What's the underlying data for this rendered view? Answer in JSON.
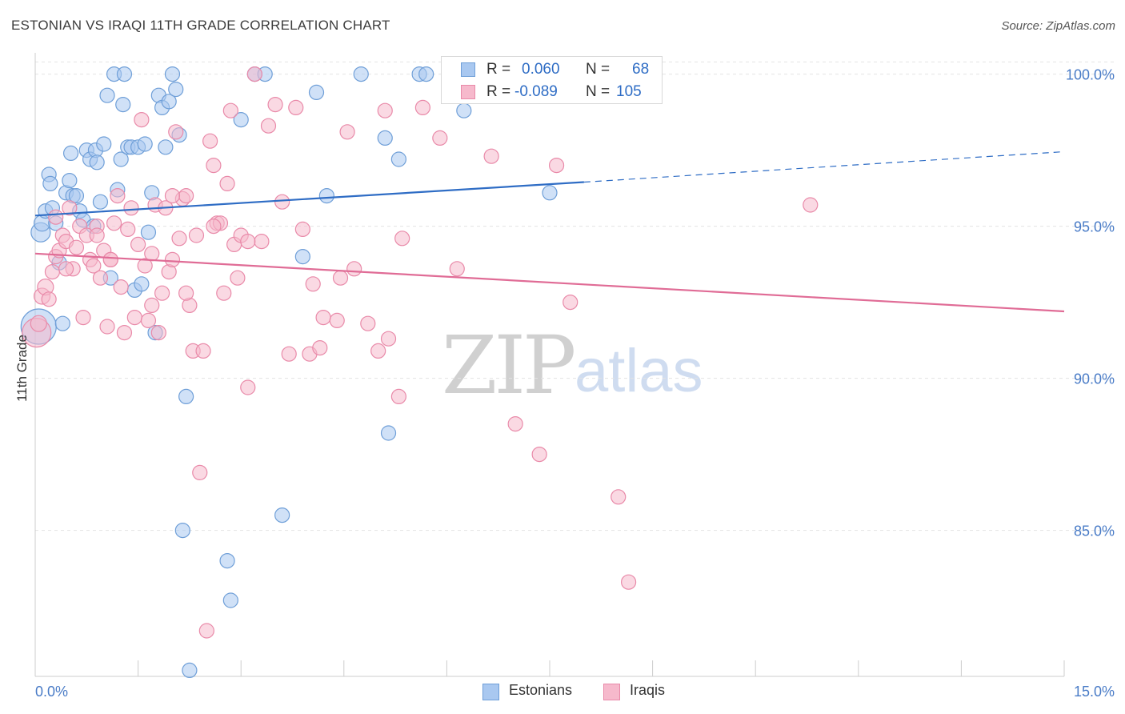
{
  "title": "ESTONIAN VS IRAQI 11TH GRADE CORRELATION CHART",
  "source": "Source: ZipAtlas.com",
  "watermark": {
    "zip": "ZIP",
    "atlas": "atlas"
  },
  "legend": {
    "rows": [
      {
        "r_label": "R =",
        "r_value": "0.060",
        "n_label": "N =",
        "n_value": "68"
      },
      {
        "r_label": "R =",
        "r_value": "-0.089",
        "n_label": "N =",
        "n_value": "105"
      }
    ]
  },
  "bottom_legend": [
    "Estonians",
    "Iraqis"
  ],
  "colors": {
    "blue_fill": "#a9c8f0",
    "blue_stroke": "#6f9fd8",
    "blue_line": "#2f6dc5",
    "pink_fill": "#f6b9cc",
    "pink_stroke": "#e98aa9",
    "pink_line": "#e06c96",
    "axis_label": "#4a7cc7",
    "grid": "#e2e2e2"
  },
  "chart_data": {
    "type": "scatter",
    "title": "ESTONIAN VS IRAQI 11TH GRADE CORRELATION CHART",
    "xlabel": "",
    "ylabel": "11th Grade",
    "xlim": [
      0,
      15
    ],
    "ylim": [
      80.2,
      100.7
    ],
    "x_tick_labels": [
      "0.0%",
      "15.0%"
    ],
    "y_ticks": [
      85,
      90,
      95,
      100
    ],
    "y_tick_labels": [
      "85.0%",
      "90.0%",
      "95.0%",
      "100.0%"
    ],
    "grid": true,
    "legend_position": "top-center",
    "series": [
      {
        "name": "Estonians",
        "r": 0.06,
        "n": 68,
        "trend": {
          "x": [
            0,
            8.0
          ],
          "y": [
            95.35,
            96.45
          ],
          "dashed_extension": {
            "x": [
              8.0,
              15.0
            ],
            "y": [
              96.45,
              97.45
            ]
          }
        },
        "points": [
          [
            0.05,
            91.7,
            22
          ],
          [
            0.08,
            94.8,
            12
          ],
          [
            0.1,
            95.1,
            10
          ],
          [
            0.15,
            95.5,
            9
          ],
          [
            0.2,
            96.7,
            9
          ],
          [
            0.22,
            96.4,
            9
          ],
          [
            0.25,
            95.6,
            9
          ],
          [
            0.3,
            95.1,
            9
          ],
          [
            0.35,
            93.8,
            9
          ],
          [
            0.4,
            91.8,
            9
          ],
          [
            0.45,
            96.1,
            9
          ],
          [
            0.5,
            96.5,
            9
          ],
          [
            0.52,
            97.4,
            9
          ],
          [
            0.55,
            96.0,
            9
          ],
          [
            0.6,
            96.0,
            9
          ],
          [
            0.65,
            95.5,
            9
          ],
          [
            0.7,
            95.2,
            9
          ],
          [
            0.75,
            97.5,
            9
          ],
          [
            0.8,
            97.2,
            9
          ],
          [
            0.85,
            95.0,
            9
          ],
          [
            0.88,
            97.5,
            9
          ],
          [
            0.9,
            97.1,
            9
          ],
          [
            0.95,
            95.8,
            9
          ],
          [
            1.0,
            97.7,
            9
          ],
          [
            1.05,
            99.3,
            9
          ],
          [
            1.1,
            93.3,
            9
          ],
          [
            1.15,
            100.0,
            9
          ],
          [
            1.2,
            96.2,
            9
          ],
          [
            1.25,
            97.2,
            9
          ],
          [
            1.28,
            99.0,
            9
          ],
          [
            1.3,
            100.0,
            9
          ],
          [
            1.35,
            97.6,
            9
          ],
          [
            1.4,
            97.6,
            9
          ],
          [
            1.45,
            92.9,
            9
          ],
          [
            1.5,
            97.6,
            9
          ],
          [
            1.55,
            93.1,
            9
          ],
          [
            1.6,
            97.7,
            9
          ],
          [
            1.65,
            94.8,
            9
          ],
          [
            1.7,
            96.1,
            9
          ],
          [
            1.75,
            91.5,
            9
          ],
          [
            1.8,
            99.3,
            9
          ],
          [
            1.85,
            98.9,
            9
          ],
          [
            1.9,
            97.6,
            9
          ],
          [
            1.95,
            99.1,
            9
          ],
          [
            2.0,
            100.0,
            9
          ],
          [
            2.05,
            99.5,
            9
          ],
          [
            2.1,
            98.0,
            9
          ],
          [
            2.15,
            85.0,
            9
          ],
          [
            2.2,
            89.4,
            9
          ],
          [
            2.25,
            80.4,
            9
          ],
          [
            2.8,
            84.0,
            9
          ],
          [
            2.85,
            82.7,
            9
          ],
          [
            3.0,
            98.5,
            9
          ],
          [
            3.2,
            100.0,
            9
          ],
          [
            3.35,
            100.0,
            9
          ],
          [
            3.6,
            85.5,
            9
          ],
          [
            3.9,
            94.0,
            9
          ],
          [
            4.1,
            99.4,
            9
          ],
          [
            4.25,
            96.0,
            9
          ],
          [
            4.75,
            100.0,
            9
          ],
          [
            5.1,
            97.9,
            9
          ],
          [
            5.15,
            88.2,
            9
          ],
          [
            5.3,
            97.2,
            9
          ],
          [
            5.6,
            100.0,
            9
          ],
          [
            6.25,
            98.8,
            9
          ],
          [
            7.5,
            96.1,
            9
          ],
          [
            8.1,
            100.0,
            9
          ],
          [
            5.7,
            100.0,
            9
          ]
        ]
      },
      {
        "name": "Iraqis",
        "r": -0.089,
        "n": 105,
        "trend": {
          "x": [
            0,
            15.0
          ],
          "y": [
            94.1,
            92.2
          ]
        },
        "points": [
          [
            0.02,
            91.5,
            18
          ],
          [
            0.05,
            91.8,
            10
          ],
          [
            0.1,
            92.7,
            10
          ],
          [
            0.15,
            93.0,
            10
          ],
          [
            0.2,
            92.6,
            9
          ],
          [
            0.25,
            93.5,
            9
          ],
          [
            0.3,
            94.0,
            9
          ],
          [
            0.35,
            94.2,
            9
          ],
          [
            0.4,
            94.7,
            9
          ],
          [
            0.45,
            94.5,
            9
          ],
          [
            0.5,
            95.6,
            9
          ],
          [
            0.55,
            93.6,
            9
          ],
          [
            0.6,
            94.3,
            9
          ],
          [
            0.65,
            95.0,
            9
          ],
          [
            0.7,
            92.0,
            9
          ],
          [
            0.75,
            94.7,
            9
          ],
          [
            0.8,
            93.9,
            9
          ],
          [
            0.85,
            93.7,
            9
          ],
          [
            0.9,
            95.0,
            9
          ],
          [
            0.95,
            93.3,
            9
          ],
          [
            1.0,
            94.2,
            9
          ],
          [
            1.05,
            91.7,
            9
          ],
          [
            1.1,
            93.9,
            9
          ],
          [
            1.15,
            95.1,
            9
          ],
          [
            1.2,
            96.0,
            9
          ],
          [
            1.25,
            93.0,
            9
          ],
          [
            1.3,
            91.5,
            9
          ],
          [
            1.35,
            94.9,
            9
          ],
          [
            1.4,
            95.6,
            9
          ],
          [
            1.45,
            92.0,
            9
          ],
          [
            1.5,
            94.4,
            9
          ],
          [
            1.55,
            98.5,
            9
          ],
          [
            1.6,
            93.7,
            9
          ],
          [
            1.65,
            91.9,
            9
          ],
          [
            1.7,
            94.1,
            9
          ],
          [
            1.75,
            95.7,
            9
          ],
          [
            1.8,
            91.5,
            9
          ],
          [
            1.85,
            92.8,
            9
          ],
          [
            1.9,
            95.6,
            9
          ],
          [
            1.95,
            93.5,
            9
          ],
          [
            2.0,
            93.9,
            9
          ],
          [
            2.05,
            98.1,
            9
          ],
          [
            2.1,
            94.6,
            9
          ],
          [
            2.15,
            95.9,
            9
          ],
          [
            2.2,
            96.0,
            9
          ],
          [
            2.25,
            92.4,
            9
          ],
          [
            2.3,
            90.9,
            9
          ],
          [
            2.35,
            94.7,
            9
          ],
          [
            2.4,
            86.9,
            9
          ],
          [
            2.45,
            90.9,
            9
          ],
          [
            2.5,
            81.7,
            9
          ],
          [
            2.55,
            97.8,
            9
          ],
          [
            2.6,
            97.0,
            9
          ],
          [
            2.65,
            95.1,
            9
          ],
          [
            2.7,
            95.1,
            9
          ],
          [
            2.75,
            92.8,
            9
          ],
          [
            2.8,
            96.4,
            9
          ],
          [
            2.85,
            98.8,
            9
          ],
          [
            2.9,
            94.4,
            9
          ],
          [
            2.95,
            93.3,
            9
          ],
          [
            3.0,
            94.7,
            9
          ],
          [
            3.1,
            89.7,
            9
          ],
          [
            3.2,
            100.0,
            9
          ],
          [
            3.3,
            94.5,
            9
          ],
          [
            3.4,
            98.3,
            9
          ],
          [
            3.5,
            99.0,
            9
          ],
          [
            3.6,
            95.8,
            9
          ],
          [
            3.7,
            90.8,
            9
          ],
          [
            3.8,
            98.9,
            9
          ],
          [
            3.9,
            94.9,
            9
          ],
          [
            4.0,
            90.8,
            9
          ],
          [
            4.05,
            93.1,
            9
          ],
          [
            4.15,
            91.0,
            9
          ],
          [
            4.2,
            92.0,
            9
          ],
          [
            4.45,
            93.3,
            9
          ],
          [
            4.55,
            98.1,
            9
          ],
          [
            4.65,
            93.6,
            9
          ],
          [
            4.85,
            91.8,
            9
          ],
          [
            5.0,
            90.9,
            9
          ],
          [
            5.1,
            98.8,
            9
          ],
          [
            5.15,
            91.3,
            9
          ],
          [
            5.3,
            89.4,
            9
          ],
          [
            5.35,
            94.6,
            9
          ],
          [
            5.65,
            98.9,
            9
          ],
          [
            5.9,
            97.9,
            9
          ],
          [
            6.15,
            93.6,
            9
          ],
          [
            6.45,
            100.0,
            9
          ],
          [
            6.65,
            97.3,
            9
          ],
          [
            7.0,
            88.5,
            9
          ],
          [
            7.35,
            87.5,
            9
          ],
          [
            7.6,
            97.0,
            9
          ],
          [
            7.8,
            92.5,
            9
          ],
          [
            8.5,
            86.1,
            9
          ],
          [
            8.65,
            83.3,
            9
          ],
          [
            11.3,
            95.7,
            9
          ],
          [
            2.0,
            96.0,
            9
          ],
          [
            2.2,
            92.8,
            9
          ],
          [
            1.1,
            93.9,
            9
          ],
          [
            0.9,
            94.7,
            9
          ],
          [
            0.45,
            93.6,
            9
          ],
          [
            1.7,
            92.4,
            9
          ],
          [
            2.6,
            95.0,
            9
          ],
          [
            3.1,
            94.5,
            9
          ],
          [
            4.4,
            91.9,
            9
          ],
          [
            0.3,
            95.3,
            9
          ]
        ]
      }
    ]
  }
}
